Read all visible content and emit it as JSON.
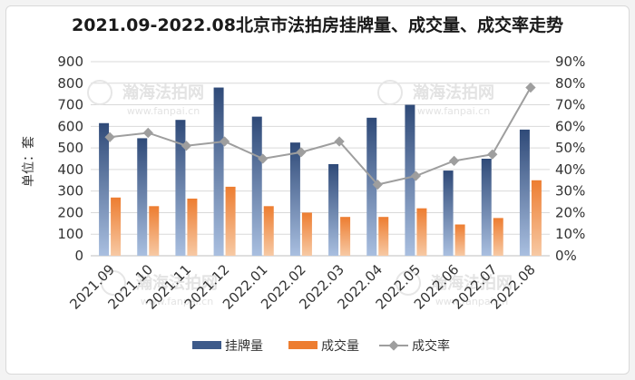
{
  "chart_data": {
    "type": "bar",
    "title": "2021.09-2022.08北京市法拍房挂牌量、成交量、成交率走势",
    "ylabel": "单位：套",
    "categories": [
      "2021.09",
      "2021.10",
      "2021.11",
      "2021.12",
      "2022.01",
      "2022.02",
      "2022.03",
      "2022.04",
      "2022.05",
      "2022.06",
      "2022.07",
      "2022.08"
    ],
    "ylim": [
      0,
      900
    ],
    "yticks": [
      0,
      100,
      200,
      300,
      400,
      500,
      600,
      700,
      800,
      900
    ],
    "y2lim": [
      0,
      90
    ],
    "y2ticks": [
      "0%",
      "10%",
      "20%",
      "30%",
      "40%",
      "50%",
      "60%",
      "70%",
      "80%",
      "90%"
    ],
    "series": [
      {
        "name": "挂牌量",
        "type": "bar",
        "axis": "left",
        "color": "#3d5a8a",
        "values": [
          615,
          545,
          630,
          780,
          645,
          525,
          425,
          640,
          700,
          395,
          450,
          585
        ]
      },
      {
        "name": "成交量",
        "type": "bar",
        "axis": "left",
        "color": "#ed7d31",
        "values": [
          270,
          230,
          265,
          320,
          230,
          200,
          180,
          180,
          220,
          145,
          175,
          350
        ]
      },
      {
        "name": "成交率",
        "type": "line",
        "axis": "right",
        "color": "#9e9e9e",
        "values": [
          55,
          57,
          51,
          53,
          45,
          48,
          53,
          33,
          37,
          44,
          47,
          78
        ]
      }
    ],
    "grid": true,
    "legend": "bottom"
  },
  "watermark": {
    "brand": "瀚海法拍网",
    "url": "www.fanpai.cn"
  }
}
